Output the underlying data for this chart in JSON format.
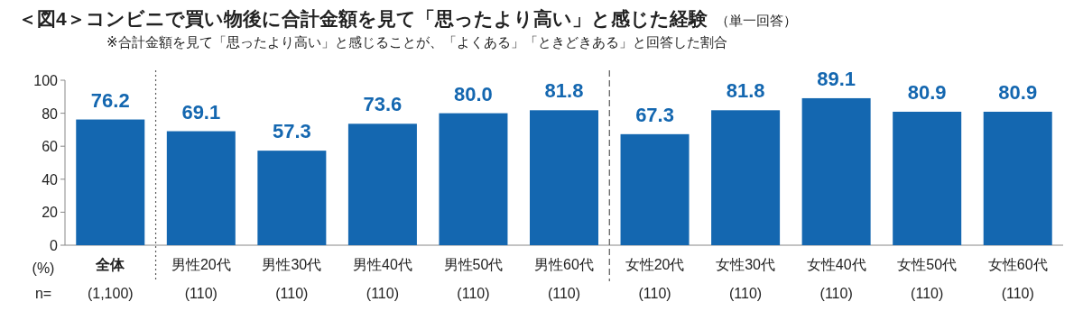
{
  "chart_data": {
    "type": "bar",
    "title": "＜図4＞コンビニで買い物後に合計金額を見て「思ったより高い」と感じた経験",
    "subtitle": "※合計金額を見て「思ったより高い」と感じることが、「よくある」「ときどきある」と回答した割合",
    "ylabel": "(%)",
    "categories": [
      "全体",
      "男性20代",
      "男性30代",
      "男性40代",
      "男性50代",
      "男性60代",
      "女性20代",
      "女性30代",
      "女性40代",
      "女性50代",
      "女性60代"
    ],
    "series": [
      {
        "color": "#1467b0",
        "values": [
          76.2,
          69.1,
          57.3,
          73.6,
          80.0,
          81.8,
          67.3,
          81.8,
          89.1,
          80.9,
          80.9
        ]
      }
    ],
    "value_labels": [
      "76.2",
      "69.1",
      "57.3",
      "73.6",
      "80.0",
      "81.8",
      "67.3",
      "81.8",
      "89.1",
      "80.9",
      "80.9"
    ],
    "ylim": [
      0,
      100
    ],
    "yticks": [
      0,
      20,
      40,
      60,
      80,
      100
    ],
    "annotations": [
      "（単一回答）",
      "n=",
      "(1,100)",
      "(110)",
      "(110)",
      "(110)",
      "(110)",
      "(110)",
      "(110)",
      "(110)",
      "(110)",
      "(110)",
      "(110)"
    ]
  }
}
